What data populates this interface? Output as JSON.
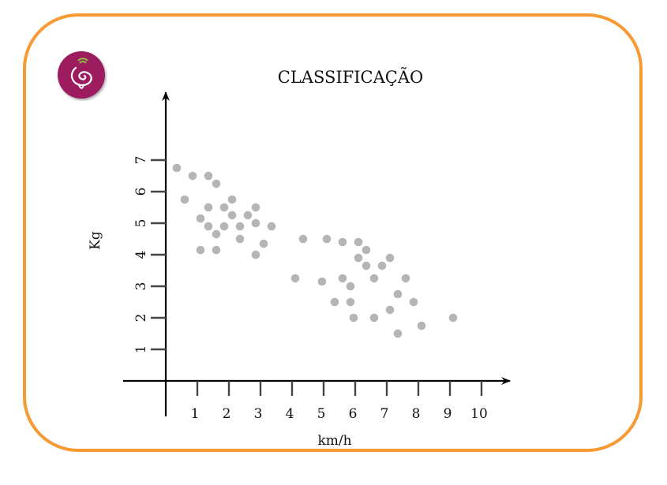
{
  "colors": {
    "frame": "#f79a34",
    "logo_disc": "#9c1f5e",
    "logo_accent": "#8fbf3f",
    "points": "#b5b5b5",
    "axes": "#000000"
  },
  "logo": {
    "icon": "spiral-signal-logo"
  },
  "chart_data": {
    "type": "scatter",
    "title": "CLASSIFICAÇÃO",
    "xlabel": "km/h",
    "ylabel": "Kg",
    "x_ticks": [
      "1",
      "2",
      "3",
      "4",
      "5",
      "6",
      "7",
      "8",
      "9",
      "10"
    ],
    "y_ticks": [
      "1",
      "2",
      "3",
      "4",
      "5",
      "6",
      "7"
    ],
    "xlim": [
      0,
      10.9
    ],
    "ylim": [
      0,
      8.2
    ],
    "grid": false,
    "legend": "none",
    "points": [
      {
        "x": 0.35,
        "y": 6.75
      },
      {
        "x": 0.6,
        "y": 5.75
      },
      {
        "x": 0.85,
        "y": 6.5
      },
      {
        "x": 1.1,
        "y": 5.15
      },
      {
        "x": 1.1,
        "y": 4.15
      },
      {
        "x": 1.35,
        "y": 6.5
      },
      {
        "x": 1.35,
        "y": 5.5
      },
      {
        "x": 1.35,
        "y": 4.9
      },
      {
        "x": 1.6,
        "y": 6.25
      },
      {
        "x": 1.6,
        "y": 4.65
      },
      {
        "x": 1.6,
        "y": 4.15
      },
      {
        "x": 1.85,
        "y": 5.5
      },
      {
        "x": 1.85,
        "y": 4.9
      },
      {
        "x": 2.1,
        "y": 5.75
      },
      {
        "x": 2.1,
        "y": 5.25
      },
      {
        "x": 2.35,
        "y": 4.9
      },
      {
        "x": 2.35,
        "y": 4.5
      },
      {
        "x": 2.6,
        "y": 5.25
      },
      {
        "x": 2.85,
        "y": 5.5
      },
      {
        "x": 2.85,
        "y": 5.0
      },
      {
        "x": 2.85,
        "y": 4.0
      },
      {
        "x": 3.1,
        "y": 4.35
      },
      {
        "x": 3.35,
        "y": 4.9
      },
      {
        "x": 4.1,
        "y": 3.25
      },
      {
        "x": 4.35,
        "y": 4.5
      },
      {
        "x": 4.95,
        "y": 3.15
      },
      {
        "x": 5.1,
        "y": 4.5
      },
      {
        "x": 5.35,
        "y": 2.5
      },
      {
        "x": 5.6,
        "y": 4.4
      },
      {
        "x": 5.6,
        "y": 3.25
      },
      {
        "x": 5.85,
        "y": 3.0
      },
      {
        "x": 5.85,
        "y": 2.5
      },
      {
        "x": 5.95,
        "y": 2.0
      },
      {
        "x": 6.1,
        "y": 4.4
      },
      {
        "x": 6.1,
        "y": 3.9
      },
      {
        "x": 6.35,
        "y": 4.15
      },
      {
        "x": 6.35,
        "y": 3.65
      },
      {
        "x": 6.6,
        "y": 3.25
      },
      {
        "x": 6.6,
        "y": 2.0
      },
      {
        "x": 6.85,
        "y": 3.65
      },
      {
        "x": 7.1,
        "y": 3.9
      },
      {
        "x": 7.1,
        "y": 2.25
      },
      {
        "x": 7.35,
        "y": 2.75
      },
      {
        "x": 7.35,
        "y": 1.5
      },
      {
        "x": 7.6,
        "y": 3.25
      },
      {
        "x": 7.85,
        "y": 2.5
      },
      {
        "x": 8.1,
        "y": 1.75
      },
      {
        "x": 9.1,
        "y": 2.0
      }
    ]
  }
}
